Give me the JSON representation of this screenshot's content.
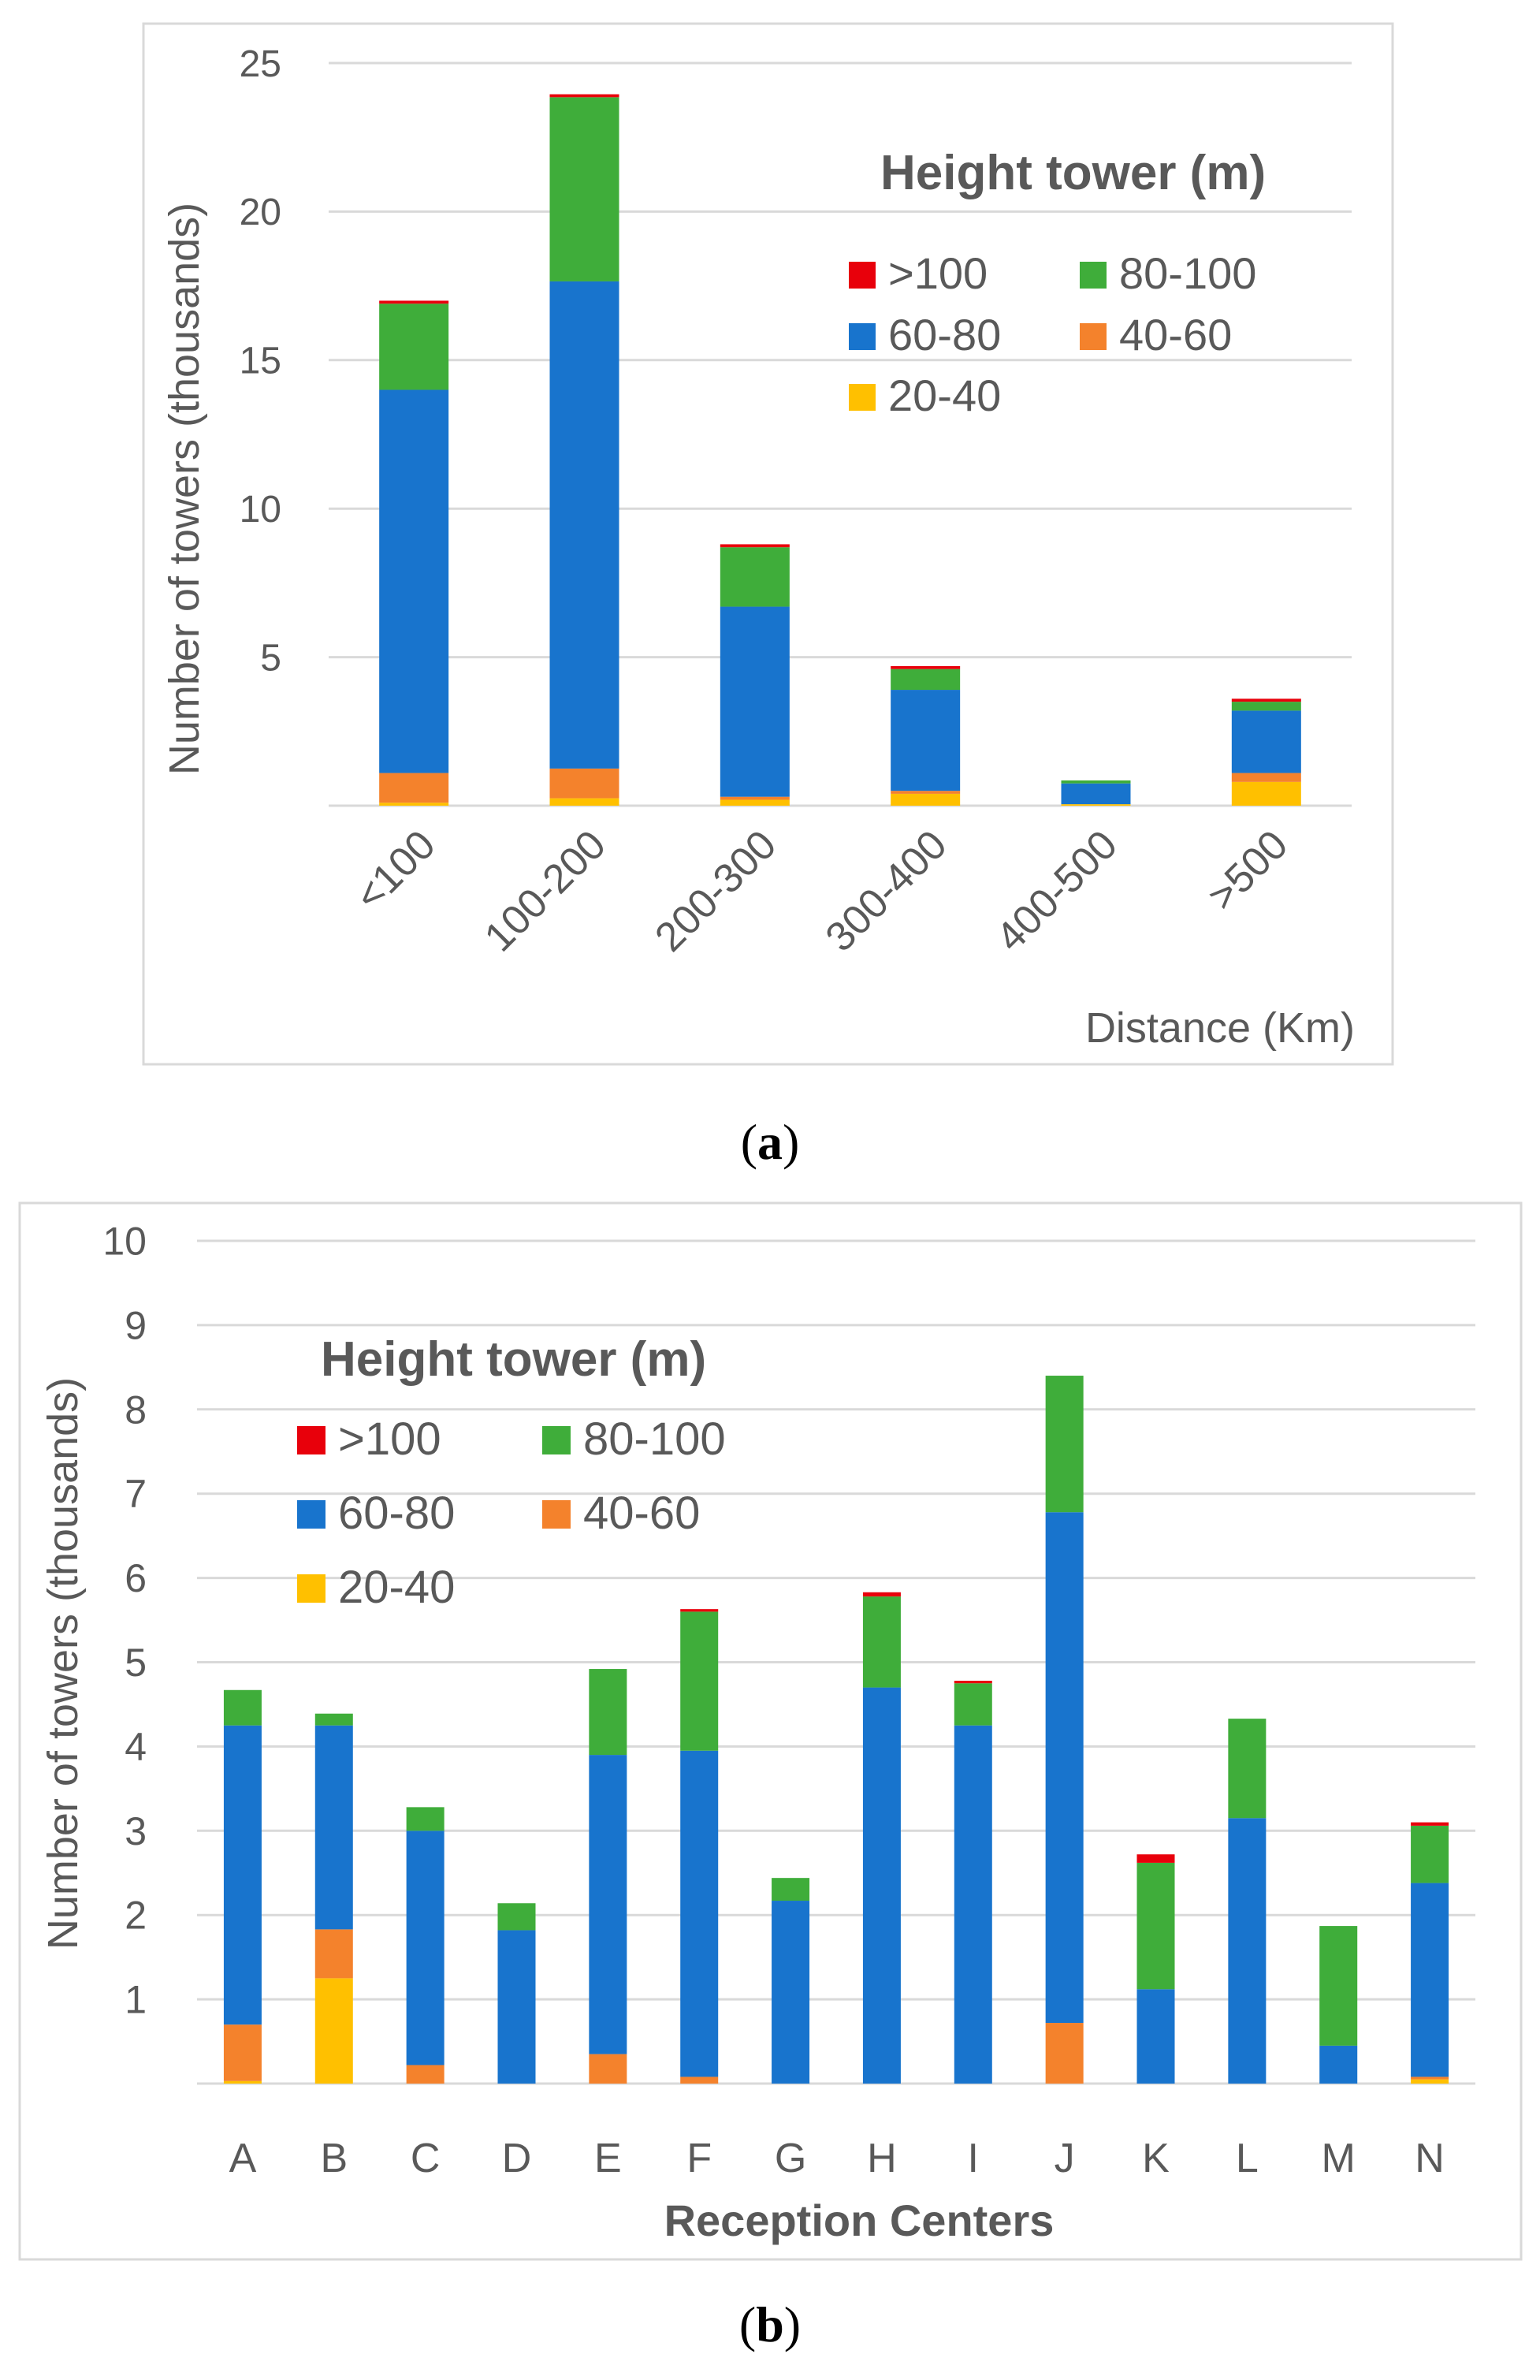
{
  "chart_data": [
    {
      "type": "bar",
      "stacked": true,
      "caption": "(a)",
      "caption_bold": "a",
      "xlabel": "Distance (Km)",
      "ylabel": "Number of towers (thousands)",
      "ylim": [
        0,
        25
      ],
      "yticks": [
        "5",
        "10",
        "15",
        "20",
        "25"
      ],
      "legend_title": "Height tower (m)",
      "legend_position": "top-right",
      "categories": [
        "<100",
        "100-200",
        "200-300",
        "300-400",
        "400-500",
        ">500"
      ],
      "series": [
        {
          "name": "20-40",
          "color": "#FFC000",
          "values": [
            0.1,
            0.25,
            0.2,
            0.4,
            0.05,
            0.8
          ]
        },
        {
          "name": "40-60",
          "color": "#F4822C",
          "values": [
            1.0,
            1.0,
            0.1,
            0.1,
            0.0,
            0.3
          ]
        },
        {
          "name": "60-80",
          "color": "#1874CD",
          "values": [
            12.9,
            16.4,
            6.4,
            3.4,
            0.7,
            2.1
          ]
        },
        {
          "name": "80-100",
          "color": "#3FAD3A",
          "values": [
            2.9,
            6.2,
            2.0,
            0.7,
            0.1,
            0.3
          ]
        },
        {
          "name": ">100",
          "color": "#E8000B",
          "values": [
            0.1,
            0.1,
            0.1,
            0.1,
            0.0,
            0.1
          ]
        }
      ]
    },
    {
      "type": "bar",
      "stacked": true,
      "caption": "(b)",
      "caption_bold": "b",
      "xlabel": "Reception Centers",
      "ylabel": "Number of towers (thousands)",
      "ylim": [
        0,
        10
      ],
      "yticks": [
        "1",
        "2",
        "3",
        "4",
        "5",
        "6",
        "7",
        "8",
        "9",
        "10"
      ],
      "legend_title": "Height tower (m)",
      "legend_position": "top-left",
      "categories": [
        "A",
        "B",
        "C",
        "D",
        "E",
        "F",
        "G",
        "H",
        "I",
        "J",
        "K",
        "L",
        "M",
        "N"
      ],
      "series": [
        {
          "name": "20-40",
          "color": "#FFC000",
          "values": [
            0.03,
            1.25,
            0.0,
            0.0,
            0.0,
            0.0,
            0.0,
            0.0,
            0.0,
            0.0,
            0.0,
            0.0,
            0.0,
            0.05
          ]
        },
        {
          "name": "40-60",
          "color": "#F4822C",
          "values": [
            0.67,
            0.58,
            0.22,
            0.0,
            0.35,
            0.08,
            0.0,
            0.0,
            0.0,
            0.72,
            0.0,
            0.0,
            0.0,
            0.03
          ]
        },
        {
          "name": "60-80",
          "color": "#1874CD",
          "values": [
            3.55,
            2.42,
            2.78,
            1.82,
            3.55,
            3.87,
            2.17,
            4.7,
            4.25,
            6.06,
            1.12,
            3.15,
            0.45,
            2.3
          ]
        },
        {
          "name": "80-100",
          "color": "#3FAD3A",
          "values": [
            0.42,
            0.14,
            0.28,
            0.32,
            1.02,
            1.65,
            0.27,
            1.08,
            0.5,
            1.62,
            1.5,
            1.18,
            1.42,
            0.68
          ]
        },
        {
          "name": ">100",
          "color": "#E8000B",
          "values": [
            0.0,
            0.0,
            0.0,
            0.0,
            0.0,
            0.03,
            0.0,
            0.05,
            0.03,
            0.0,
            0.1,
            0.0,
            0.0,
            0.04
          ]
        }
      ]
    }
  ]
}
